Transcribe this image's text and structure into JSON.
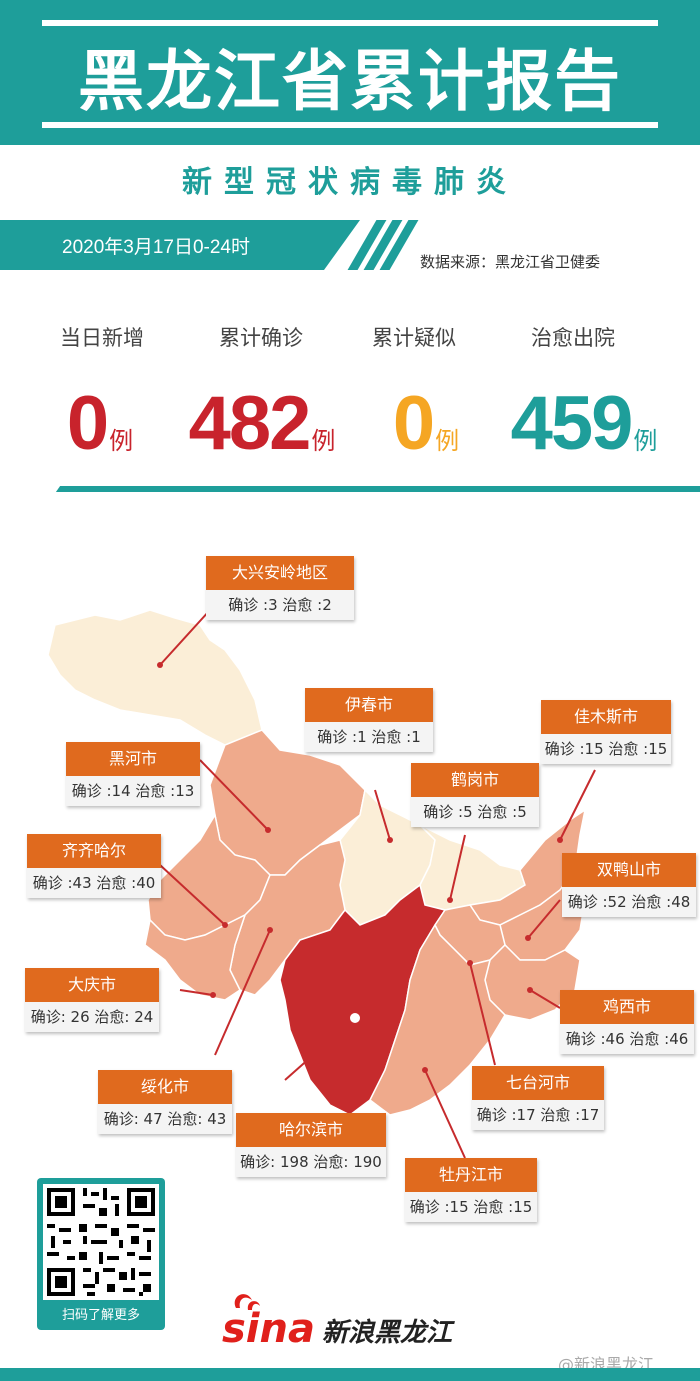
{
  "header": {
    "title": "黑龙江省累计报告",
    "subtitle": "新型冠状病毒肺炎"
  },
  "date": "2020年3月17日0-24时",
  "source": "数据来源：黑龙江省卫健委",
  "stats": [
    {
      "label": "当日新增",
      "value": "0",
      "unit": "例",
      "color": "#c8232c"
    },
    {
      "label": "累计确诊",
      "value": "482",
      "unit": "例",
      "color": "#c8232c"
    },
    {
      "label": "累计疑似",
      "value": "0",
      "unit": "例",
      "color": "#f5a623"
    },
    {
      "label": "治愈出院",
      "value": "459",
      "unit": "例",
      "color": "#1e9e9a"
    }
  ],
  "regions": [
    {
      "name": "大兴安岭地区",
      "stats": "确诊 :3  治愈 :2"
    },
    {
      "name": "伊春市",
      "stats": "确诊 :1  治愈 :1"
    },
    {
      "name": "佳木斯市",
      "stats": "确诊 :15  治愈 :15"
    },
    {
      "name": "黑河市",
      "stats": "确诊 :14  治愈 :13"
    },
    {
      "name": "鹤岗市",
      "stats": "确诊 :5  治愈 :5"
    },
    {
      "name": "齐齐哈尔",
      "stats": "确诊 :43  治愈 :40"
    },
    {
      "name": "双鸭山市",
      "stats": "确诊 :52  治愈 :48"
    },
    {
      "name": "大庆市",
      "stats": "确诊: 26  治愈: 24"
    },
    {
      "name": "鸡西市",
      "stats": "确诊 :46  治愈 :46"
    },
    {
      "name": "绥化市",
      "stats": "确诊: 47  治愈: 43"
    },
    {
      "name": "七台河市",
      "stats": "确诊 :17  治愈 :17"
    },
    {
      "name": "哈尔滨市",
      "stats": "确诊: 198  治愈: 190"
    },
    {
      "name": "牡丹江市",
      "stats": "确诊 :15  治愈 :15"
    }
  ],
  "qr": {
    "caption": "扫码了解更多"
  },
  "brand": {
    "logo": "sina",
    "name": "新浪黑龙江"
  },
  "watermark": "@新浪黑龙江",
  "colors": {
    "teal": "#1e9e9a",
    "orange": "#e06a1e",
    "red": "#c8232c",
    "yellow": "#f5a623",
    "map_light": "#fbeed7",
    "map_mid": "#efaa8c",
    "map_dark": "#c62b2d"
  }
}
